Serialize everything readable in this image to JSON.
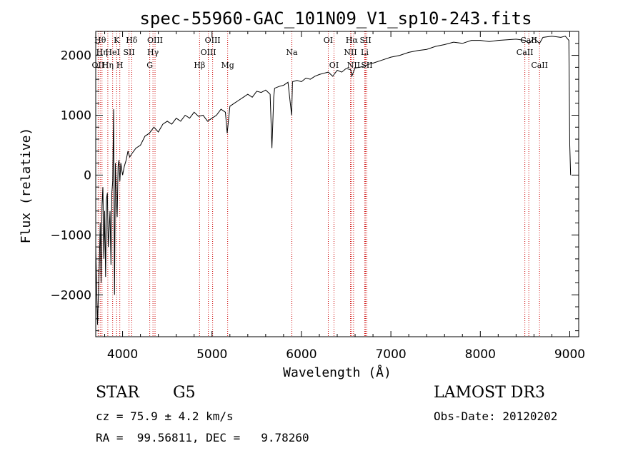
{
  "chart_data": {
    "type": "line",
    "title": "spec-55960-GAC_101N09_V1_sp10-243.fits",
    "xlabel": "Wavelength (Å)",
    "ylabel": "Flux (relative)",
    "xlim": [
      3700,
      9100
    ],
    "ylim": [
      -2700,
      2400
    ],
    "x_ticks": [
      4000,
      5000,
      6000,
      7000,
      8000,
      9000
    ],
    "y_ticks": [
      -2000,
      -1000,
      0,
      1000,
      2000
    ],
    "line_color": "#000000",
    "marker_color": "#cc0000",
    "grid": false,
    "series": [
      {
        "x": [
          3700,
          3720,
          3740,
          3750,
          3760,
          3770,
          3780,
          3790,
          3800,
          3810,
          3820,
          3830,
          3840,
          3850,
          3860,
          3870,
          3880,
          3890,
          3900,
          3910,
          3920,
          3930,
          3940,
          3950,
          3960,
          3970,
          3980,
          3990,
          4000,
          4020,
          4040,
          4060,
          4080,
          4100,
          4150,
          4200,
          4250,
          4300,
          4350,
          4400,
          4450,
          4500,
          4550,
          4600,
          4650,
          4700,
          4750,
          4800,
          4850,
          4900,
          4950,
          5000,
          5050,
          5100,
          5150,
          5170,
          5200,
          5250,
          5300,
          5350,
          5400,
          5450,
          5500,
          5550,
          5600,
          5650,
          5670,
          5690,
          5700,
          5750,
          5800,
          5850,
          5890,
          5900,
          5950,
          6000,
          6050,
          6100,
          6150,
          6200,
          6250,
          6300,
          6350,
          6400,
          6450,
          6500,
          6550,
          6563,
          6600,
          6650,
          6700,
          6750,
          6800,
          6900,
          7000,
          7100,
          7200,
          7300,
          7400,
          7500,
          7600,
          7700,
          7800,
          7900,
          8000,
          8100,
          8200,
          8300,
          8400,
          8500,
          8542,
          8600,
          8662,
          8700,
          8800,
          8900,
          8950,
          8990,
          9000,
          9010
        ],
        "y": [
          -1200,
          -2500,
          -1500,
          -800,
          -1800,
          -500,
          -200,
          -1400,
          -600,
          -1700,
          -400,
          -300,
          -1200,
          -900,
          -600,
          -1500,
          -300,
          -100,
          1100,
          -2000,
          200,
          -400,
          -700,
          150,
          250,
          -100,
          200,
          100,
          0,
          150,
          250,
          400,
          300,
          350,
          450,
          500,
          650,
          700,
          800,
          720,
          850,
          900,
          850,
          950,
          900,
          1000,
          950,
          1050,
          980,
          1000,
          900,
          950,
          1000,
          1100,
          1050,
          700,
          1150,
          1200,
          1250,
          1300,
          1350,
          1300,
          1400,
          1380,
          1420,
          1350,
          450,
          1300,
          1450,
          1480,
          1500,
          1550,
          1000,
          1560,
          1580,
          1560,
          1620,
          1600,
          1650,
          1680,
          1700,
          1720,
          1650,
          1750,
          1720,
          1780,
          1760,
          1650,
          1790,
          1800,
          1820,
          1850,
          1870,
          1920,
          1970,
          2000,
          2050,
          2080,
          2100,
          2150,
          2180,
          2220,
          2200,
          2250,
          2250,
          2230,
          2250,
          2260,
          2270,
          2250,
          2200,
          2280,
          2200,
          2300,
          2320,
          2300,
          2320,
          2250,
          500,
          0
        ]
      }
    ],
    "line_markers": [
      {
        "wavelength": 3727,
        "labels": [
          "OII"
        ],
        "row": 3
      },
      {
        "wavelength": 3750,
        "labels": [
          "Hθ"
        ],
        "row": 1
      },
      {
        "wavelength": 3770,
        "labels": [
          "Hη"
        ],
        "row": 2
      },
      {
        "wavelength": 3835,
        "labels": [
          "Hη"
        ],
        "row": 3
      },
      {
        "wavelength": 3889,
        "labels": [
          "HeI"
        ],
        "row": 2
      },
      {
        "wavelength": 3934,
        "labels": [
          "K"
        ],
        "row": 1
      },
      {
        "wavelength": 3969,
        "labels": [
          "H"
        ],
        "row": 3
      },
      {
        "wavelength": 4072,
        "labels": [
          "SII"
        ],
        "row": 2
      },
      {
        "wavelength": 4102,
        "labels": [
          "Hδ"
        ],
        "row": 1
      },
      {
        "wavelength": 4304,
        "labels": [
          "G"
        ],
        "row": 3
      },
      {
        "wavelength": 4340,
        "labels": [
          "Hγ"
        ],
        "row": 2
      },
      {
        "wavelength": 4363,
        "labels": [
          "OIII"
        ],
        "row": 1
      },
      {
        "wavelength": 4861,
        "labels": [
          "Hβ"
        ],
        "row": 3
      },
      {
        "wavelength": 4959,
        "labels": [
          "OIII"
        ],
        "row": 2
      },
      {
        "wavelength": 5007,
        "labels": [
          "OIII"
        ],
        "row": 1
      },
      {
        "wavelength": 5175,
        "labels": [
          "Mg"
        ],
        "row": 3
      },
      {
        "wavelength": 5893,
        "labels": [
          "Na"
        ],
        "row": 2
      },
      {
        "wavelength": 6300,
        "labels": [
          "OI"
        ],
        "row": 1
      },
      {
        "wavelength": 6364,
        "labels": [
          "OI"
        ],
        "row": 3
      },
      {
        "wavelength": 6548,
        "labels": [
          "NII"
        ],
        "row": 2
      },
      {
        "wavelength": 6563,
        "labels": [
          "Hα"
        ],
        "row": 1
      },
      {
        "wavelength": 6583,
        "labels": [
          "NII"
        ],
        "row": 3
      },
      {
        "wavelength": 6707,
        "labels": [
          "Li"
        ],
        "row": 2
      },
      {
        "wavelength": 6716,
        "labels": [
          "SII"
        ],
        "row": 1
      },
      {
        "wavelength": 6731,
        "labels": [
          "SII"
        ],
        "row": 3
      },
      {
        "wavelength": 8498,
        "labels": [
          "CaII"
        ],
        "row": 2
      },
      {
        "wavelength": 8542,
        "labels": [
          "CaII"
        ],
        "row": 1
      },
      {
        "wavelength": 8662,
        "labels": [
          "CaII"
        ],
        "row": 3
      }
    ]
  },
  "info": {
    "object_class": "STAR",
    "subclass": "G5",
    "survey": "LAMOST DR3",
    "redshift": "cz = 75.9 ± 4.2 km/s",
    "obs_date": "Obs-Date: 20120202",
    "coords": "RA =  99.56811, DEC =   9.78260"
  }
}
